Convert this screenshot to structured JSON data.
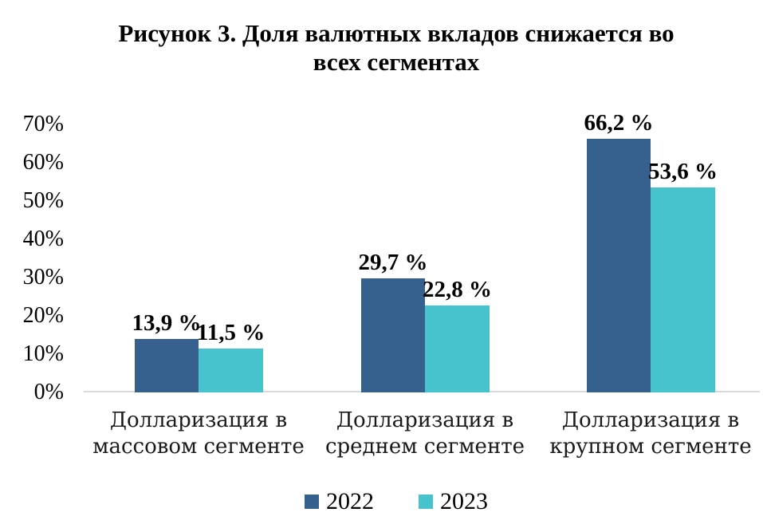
{
  "figure": {
    "title_line1": "Рисунок 3. Доля валютных вкладов снижается во",
    "title_line2": "всех сегментах"
  },
  "chart_data": {
    "type": "bar",
    "title": "Рисунок 3. Доля валютных вкладов снижается во всех сегментах",
    "categories": [
      "Долларизация в массовом сегменте",
      "Долларизация в среднем сегменте",
      "Долларизация в крупном сегменте"
    ],
    "series": [
      {
        "name": "2022",
        "color": "#36618F",
        "values": [
          13.9,
          29.7,
          66.2
        ],
        "value_labels": [
          "13,9 %",
          "29,7 %",
          "66,2 %"
        ]
      },
      {
        "name": "2023",
        "color": "#46C3CD",
        "values": [
          11.5,
          22.8,
          53.6
        ],
        "value_labels": [
          "11,5 %",
          "22,8 %",
          "53,6 %"
        ]
      }
    ],
    "xlabel": "",
    "ylabel": "",
    "ylim": [
      0,
      70
    ],
    "yticks": [
      0,
      10,
      20,
      30,
      40,
      50,
      60,
      70
    ],
    "ytick_labels": [
      "0%",
      "10%",
      "20%",
      "30%",
      "40%",
      "50%",
      "60%",
      "70%"
    ],
    "grid": false,
    "legend_position": "bottom",
    "axis_line_color": "#D9D9D9",
    "value_label_format": "comma-decimal-space-percent"
  }
}
